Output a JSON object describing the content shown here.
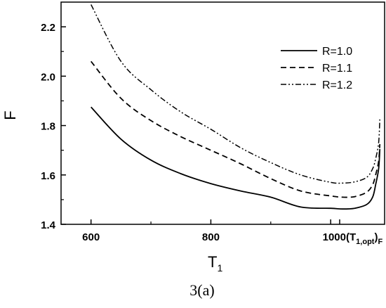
{
  "chart_data": {
    "type": "line",
    "xlabel": "T",
    "xlabel_sub": "1",
    "ylabel": "F",
    "xlim": [
      550,
      1090
    ],
    "ylim": [
      1.4,
      2.3
    ],
    "xticks": [
      {
        "value": 600,
        "label": "600"
      },
      {
        "value": 800,
        "label": "800"
      },
      {
        "value": 1000,
        "label": "1000"
      }
    ],
    "xtick_annotation": {
      "prefix": "(T",
      "sub": "1,opt",
      "suffix": ")",
      "sub2": "F"
    },
    "yticks": [
      {
        "value": 1.4,
        "label": "1.4"
      },
      {
        "value": 1.6,
        "label": "1.6"
      },
      {
        "value": 1.8,
        "label": "1.8"
      },
      {
        "value": 2.0,
        "label": "2.0"
      },
      {
        "value": 2.2,
        "label": "2.2"
      }
    ],
    "legend_position": "top-right",
    "caption": "3(a)",
    "series": [
      {
        "name": "R=1.0",
        "style": "solid",
        "points": [
          [
            600,
            1.875
          ],
          [
            650,
            1.745
          ],
          [
            700,
            1.66
          ],
          [
            750,
            1.605
          ],
          [
            800,
            1.565
          ],
          [
            850,
            1.535
          ],
          [
            900,
            1.51
          ],
          [
            950,
            1.47
          ],
          [
            1000,
            1.465
          ],
          [
            1020,
            1.462
          ],
          [
            1040,
            1.465
          ],
          [
            1060,
            1.48
          ],
          [
            1070,
            1.51
          ],
          [
            1075,
            1.56
          ],
          [
            1080,
            1.625
          ],
          [
            1082,
            1.705
          ]
        ]
      },
      {
        "name": "R=1.1",
        "style": "dashed",
        "points": [
          [
            600,
            2.06
          ],
          [
            650,
            1.91
          ],
          [
            700,
            1.82
          ],
          [
            750,
            1.755
          ],
          [
            800,
            1.7
          ],
          [
            850,
            1.645
          ],
          [
            900,
            1.585
          ],
          [
            950,
            1.535
          ],
          [
            1000,
            1.515
          ],
          [
            1020,
            1.51
          ],
          [
            1040,
            1.512
          ],
          [
            1060,
            1.53
          ],
          [
            1070,
            1.56
          ],
          [
            1075,
            1.6
          ],
          [
            1080,
            1.655
          ],
          [
            1082,
            1.725
          ]
        ]
      },
      {
        "name": "R=1.2",
        "style": "dashdotdot",
        "points": [
          [
            600,
            2.29
          ],
          [
            650,
            2.06
          ],
          [
            700,
            1.945
          ],
          [
            750,
            1.855
          ],
          [
            800,
            1.785
          ],
          [
            850,
            1.71
          ],
          [
            900,
            1.65
          ],
          [
            950,
            1.6
          ],
          [
            1000,
            1.57
          ],
          [
            1020,
            1.567
          ],
          [
            1040,
            1.572
          ],
          [
            1060,
            1.59
          ],
          [
            1070,
            1.625
          ],
          [
            1075,
            1.665
          ],
          [
            1080,
            1.73
          ],
          [
            1082,
            1.825
          ]
        ]
      }
    ]
  }
}
